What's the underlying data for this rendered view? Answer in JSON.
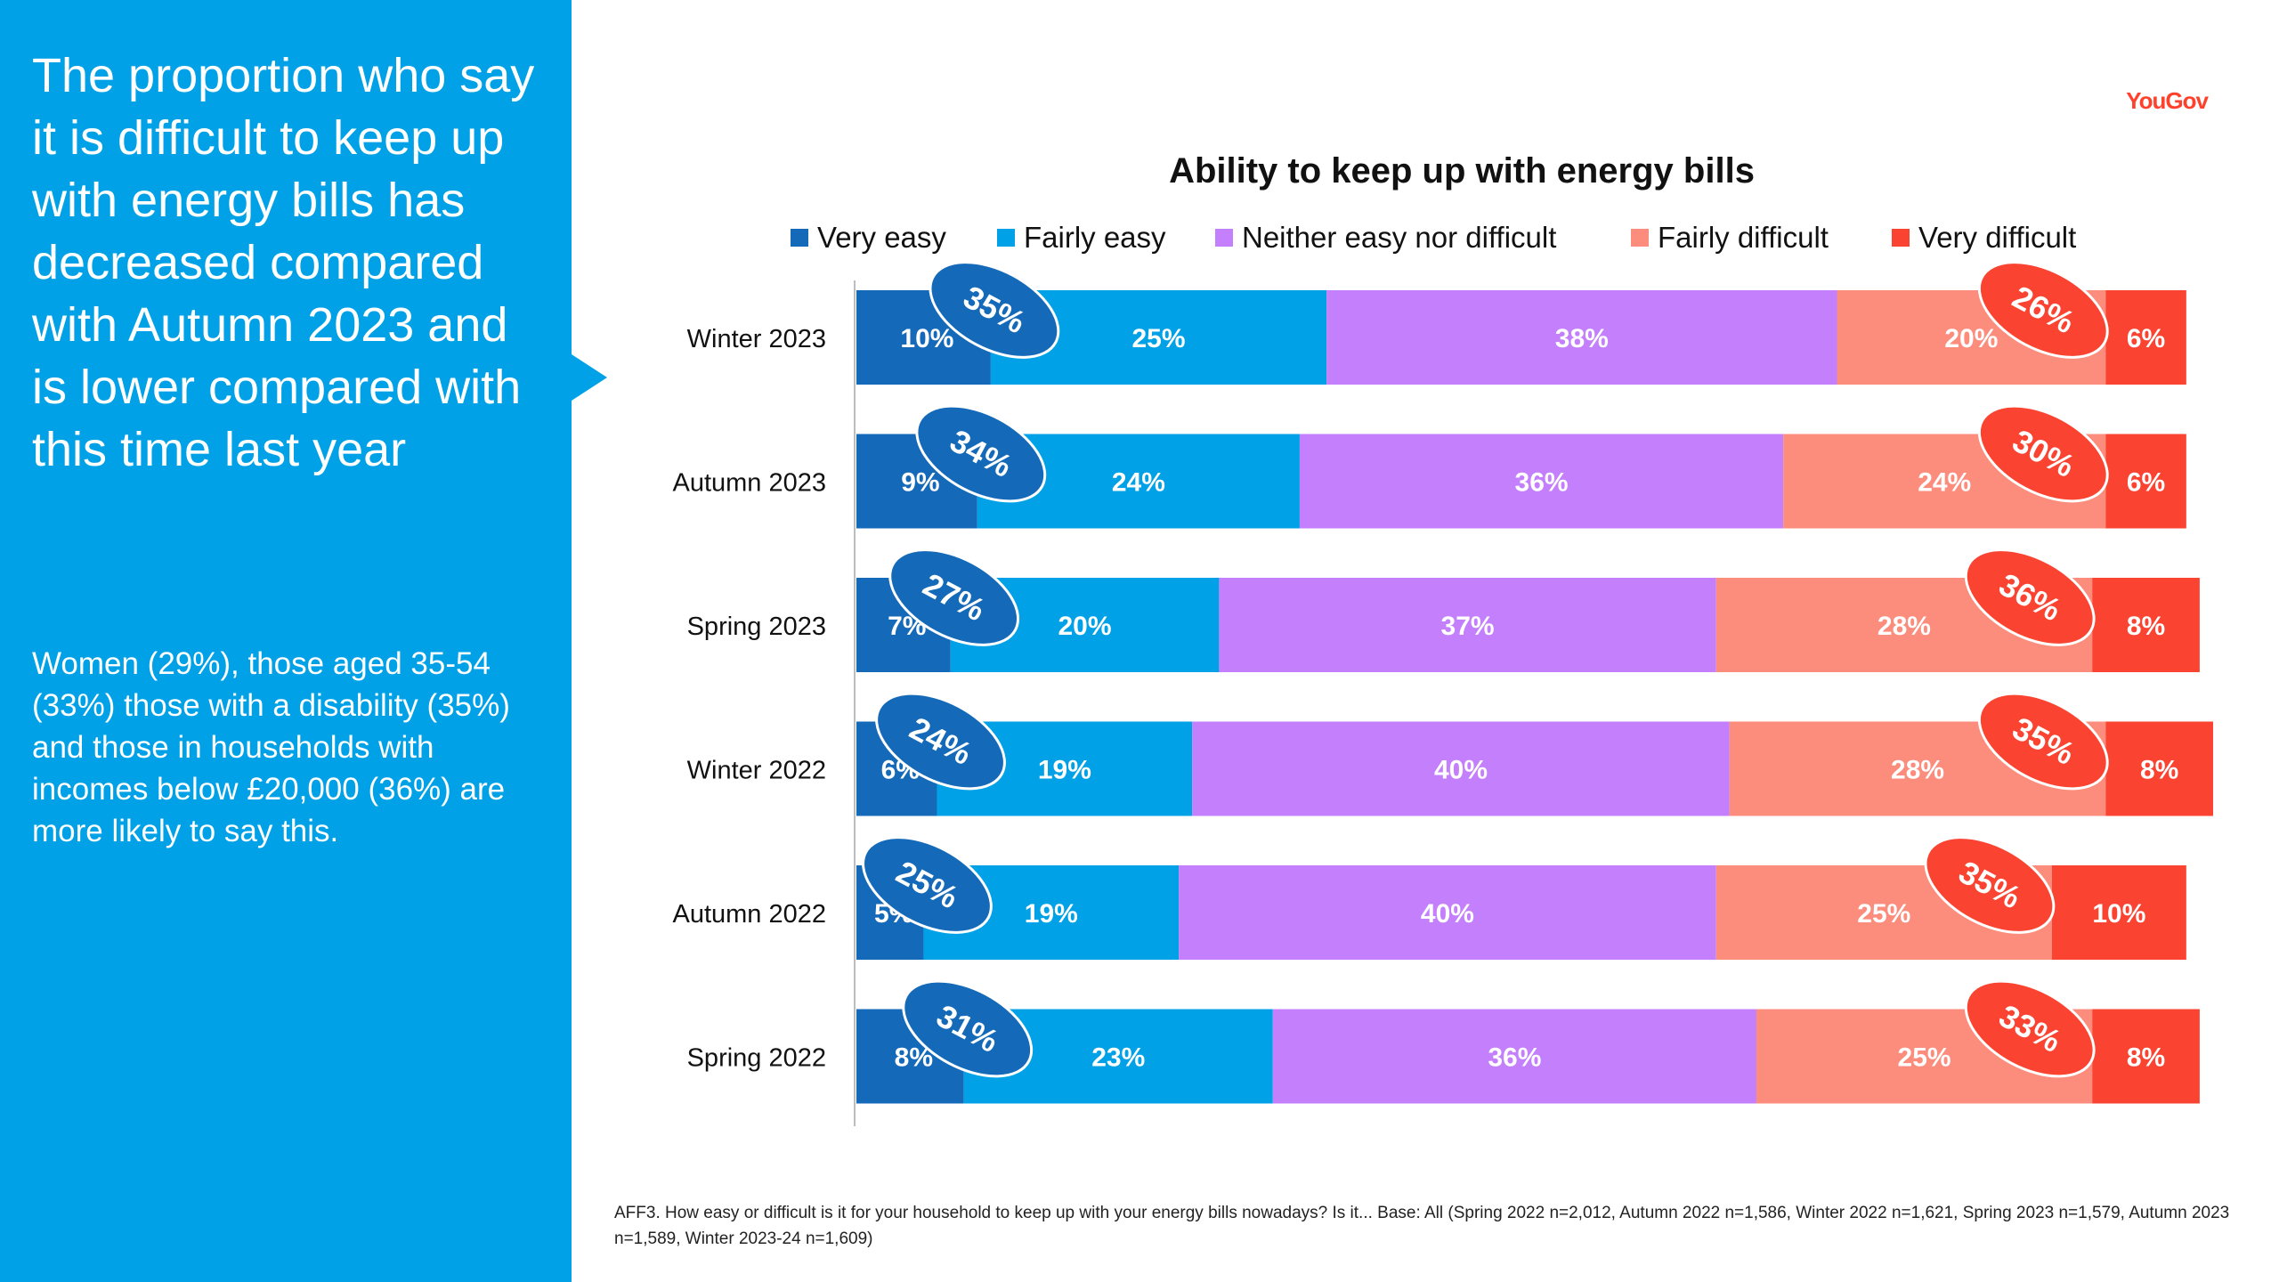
{
  "sidebar": {
    "headline": "The proportion who say it is difficult to keep up with energy bills has decreased compared with Autumn 2023 and is lower compared with this time last year",
    "detail": "Women (29%), those aged 35-54 (33%) those with a disability (35%) and those in households with incomes below £20,000 (36%) are more likely to say this."
  },
  "logo": "YouGov",
  "footnote": "AFF3. How easy or difficult is it for your household to keep up with your energy bills nowadays? Is it... Base: All (Spring 2022 n=2,012, Autumn 2022 n=1,586, Winter 2022 n=1,621, Spring 2023 n=1,579, Autumn 2023 n=1,589, Winter 2023-24 n=1,609)",
  "colors": {
    "sidebar": "#00a1e6",
    "very_easy": "#1469b8",
    "fairly_easy": "#00a1e6",
    "neither": "#c47ffc",
    "fairly_difficult": "#fc8c7c",
    "very_difficult": "#fa4330",
    "logo": "#ff412c"
  },
  "chart_data": {
    "type": "bar",
    "orientation": "horizontal",
    "stacked": true,
    "title": "Ability to keep up with energy bills",
    "categories": [
      "Winter 2023",
      "Autumn 2023",
      "Spring 2023",
      "Winter 2022",
      "Autumn 2022",
      "Spring 2022"
    ],
    "series": [
      {
        "name": "Very easy",
        "color": "#1469b8",
        "values": [
          10,
          9,
          7,
          6,
          5,
          8
        ]
      },
      {
        "name": "Fairly easy",
        "color": "#00a1e6",
        "values": [
          25,
          24,
          20,
          19,
          19,
          23
        ]
      },
      {
        "name": "Neither easy nor difficult",
        "color": "#c47ffc",
        "values": [
          38,
          36,
          37,
          40,
          40,
          36
        ]
      },
      {
        "name": "Fairly difficult",
        "color": "#fc8c7c",
        "values": [
          20,
          24,
          28,
          28,
          25,
          25
        ]
      },
      {
        "name": "Very difficult",
        "color": "#fa4330",
        "values": [
          6,
          6,
          8,
          8,
          10,
          8
        ]
      }
    ],
    "net_easy": [
      35,
      34,
      27,
      24,
      25,
      31
    ],
    "net_difficult": [
      26,
      30,
      36,
      35,
      35,
      33
    ],
    "value_suffix": "%",
    "legend_position": "top",
    "grid": false
  }
}
